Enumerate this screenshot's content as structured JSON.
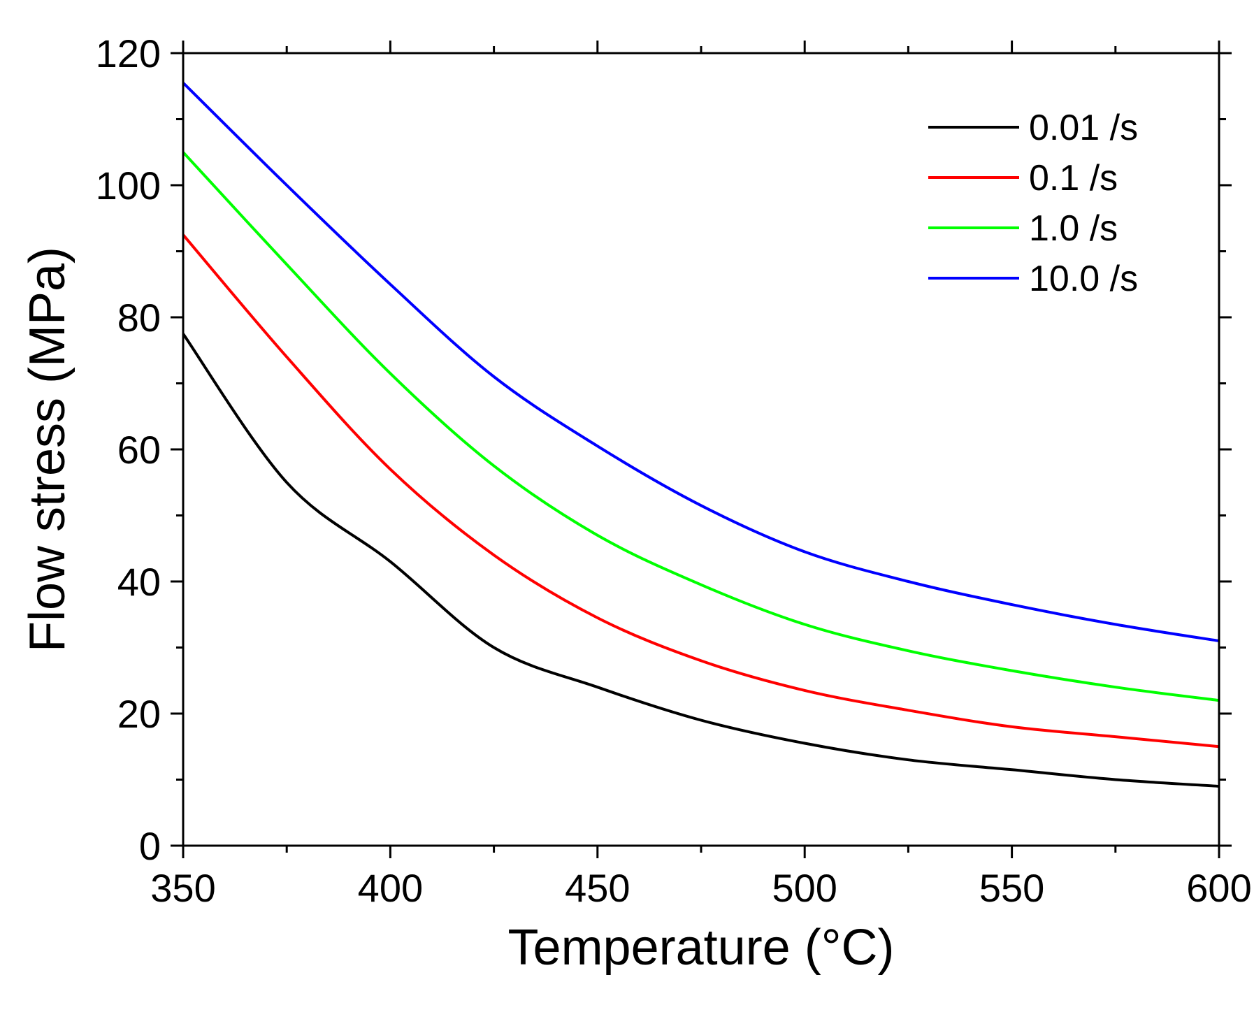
{
  "chart_data": {
    "type": "line",
    "title": "",
    "xlabel": "Temperature (°C)",
    "ylabel": "Flow stress (MPa)",
    "xlim": [
      350,
      600
    ],
    "ylim": [
      0,
      120
    ],
    "x_ticks": [
      350,
      400,
      450,
      500,
      550,
      600
    ],
    "y_ticks": [
      0,
      20,
      40,
      60,
      80,
      100,
      120
    ],
    "x_tick_labels": [
      "350",
      "400",
      "450",
      "500",
      "550",
      "600"
    ],
    "y_tick_labels": [
      "0",
      "20",
      "40",
      "60",
      "80",
      "100",
      "120"
    ],
    "grid": false,
    "legend_position": "top-right",
    "x": [
      350,
      375,
      400,
      425,
      450,
      475,
      500,
      525,
      550,
      575,
      600
    ],
    "series": [
      {
        "name": "0.01 /s",
        "color": "#000000",
        "values": [
          77.5,
          55,
          43,
          30,
          24,
          19,
          15.5,
          13,
          11.5,
          10,
          9
        ]
      },
      {
        "name": "0.1 /s",
        "color": "#ff0000",
        "values": [
          92.5,
          74,
          57,
          44,
          34.5,
          28,
          23.5,
          20.5,
          18,
          16.5,
          15
        ]
      },
      {
        "name": "1.0 /s",
        "color": "#00ff00",
        "values": [
          105,
          88,
          71.5,
          57.5,
          47,
          39.5,
          33.5,
          29.5,
          26.5,
          24,
          22
        ]
      },
      {
        "name": "10.0 /s",
        "color": "#0000ff",
        "values": [
          115.5,
          100,
          85,
          71,
          60.5,
          51.5,
          44.5,
          40,
          36.5,
          33.5,
          31
        ]
      }
    ]
  }
}
